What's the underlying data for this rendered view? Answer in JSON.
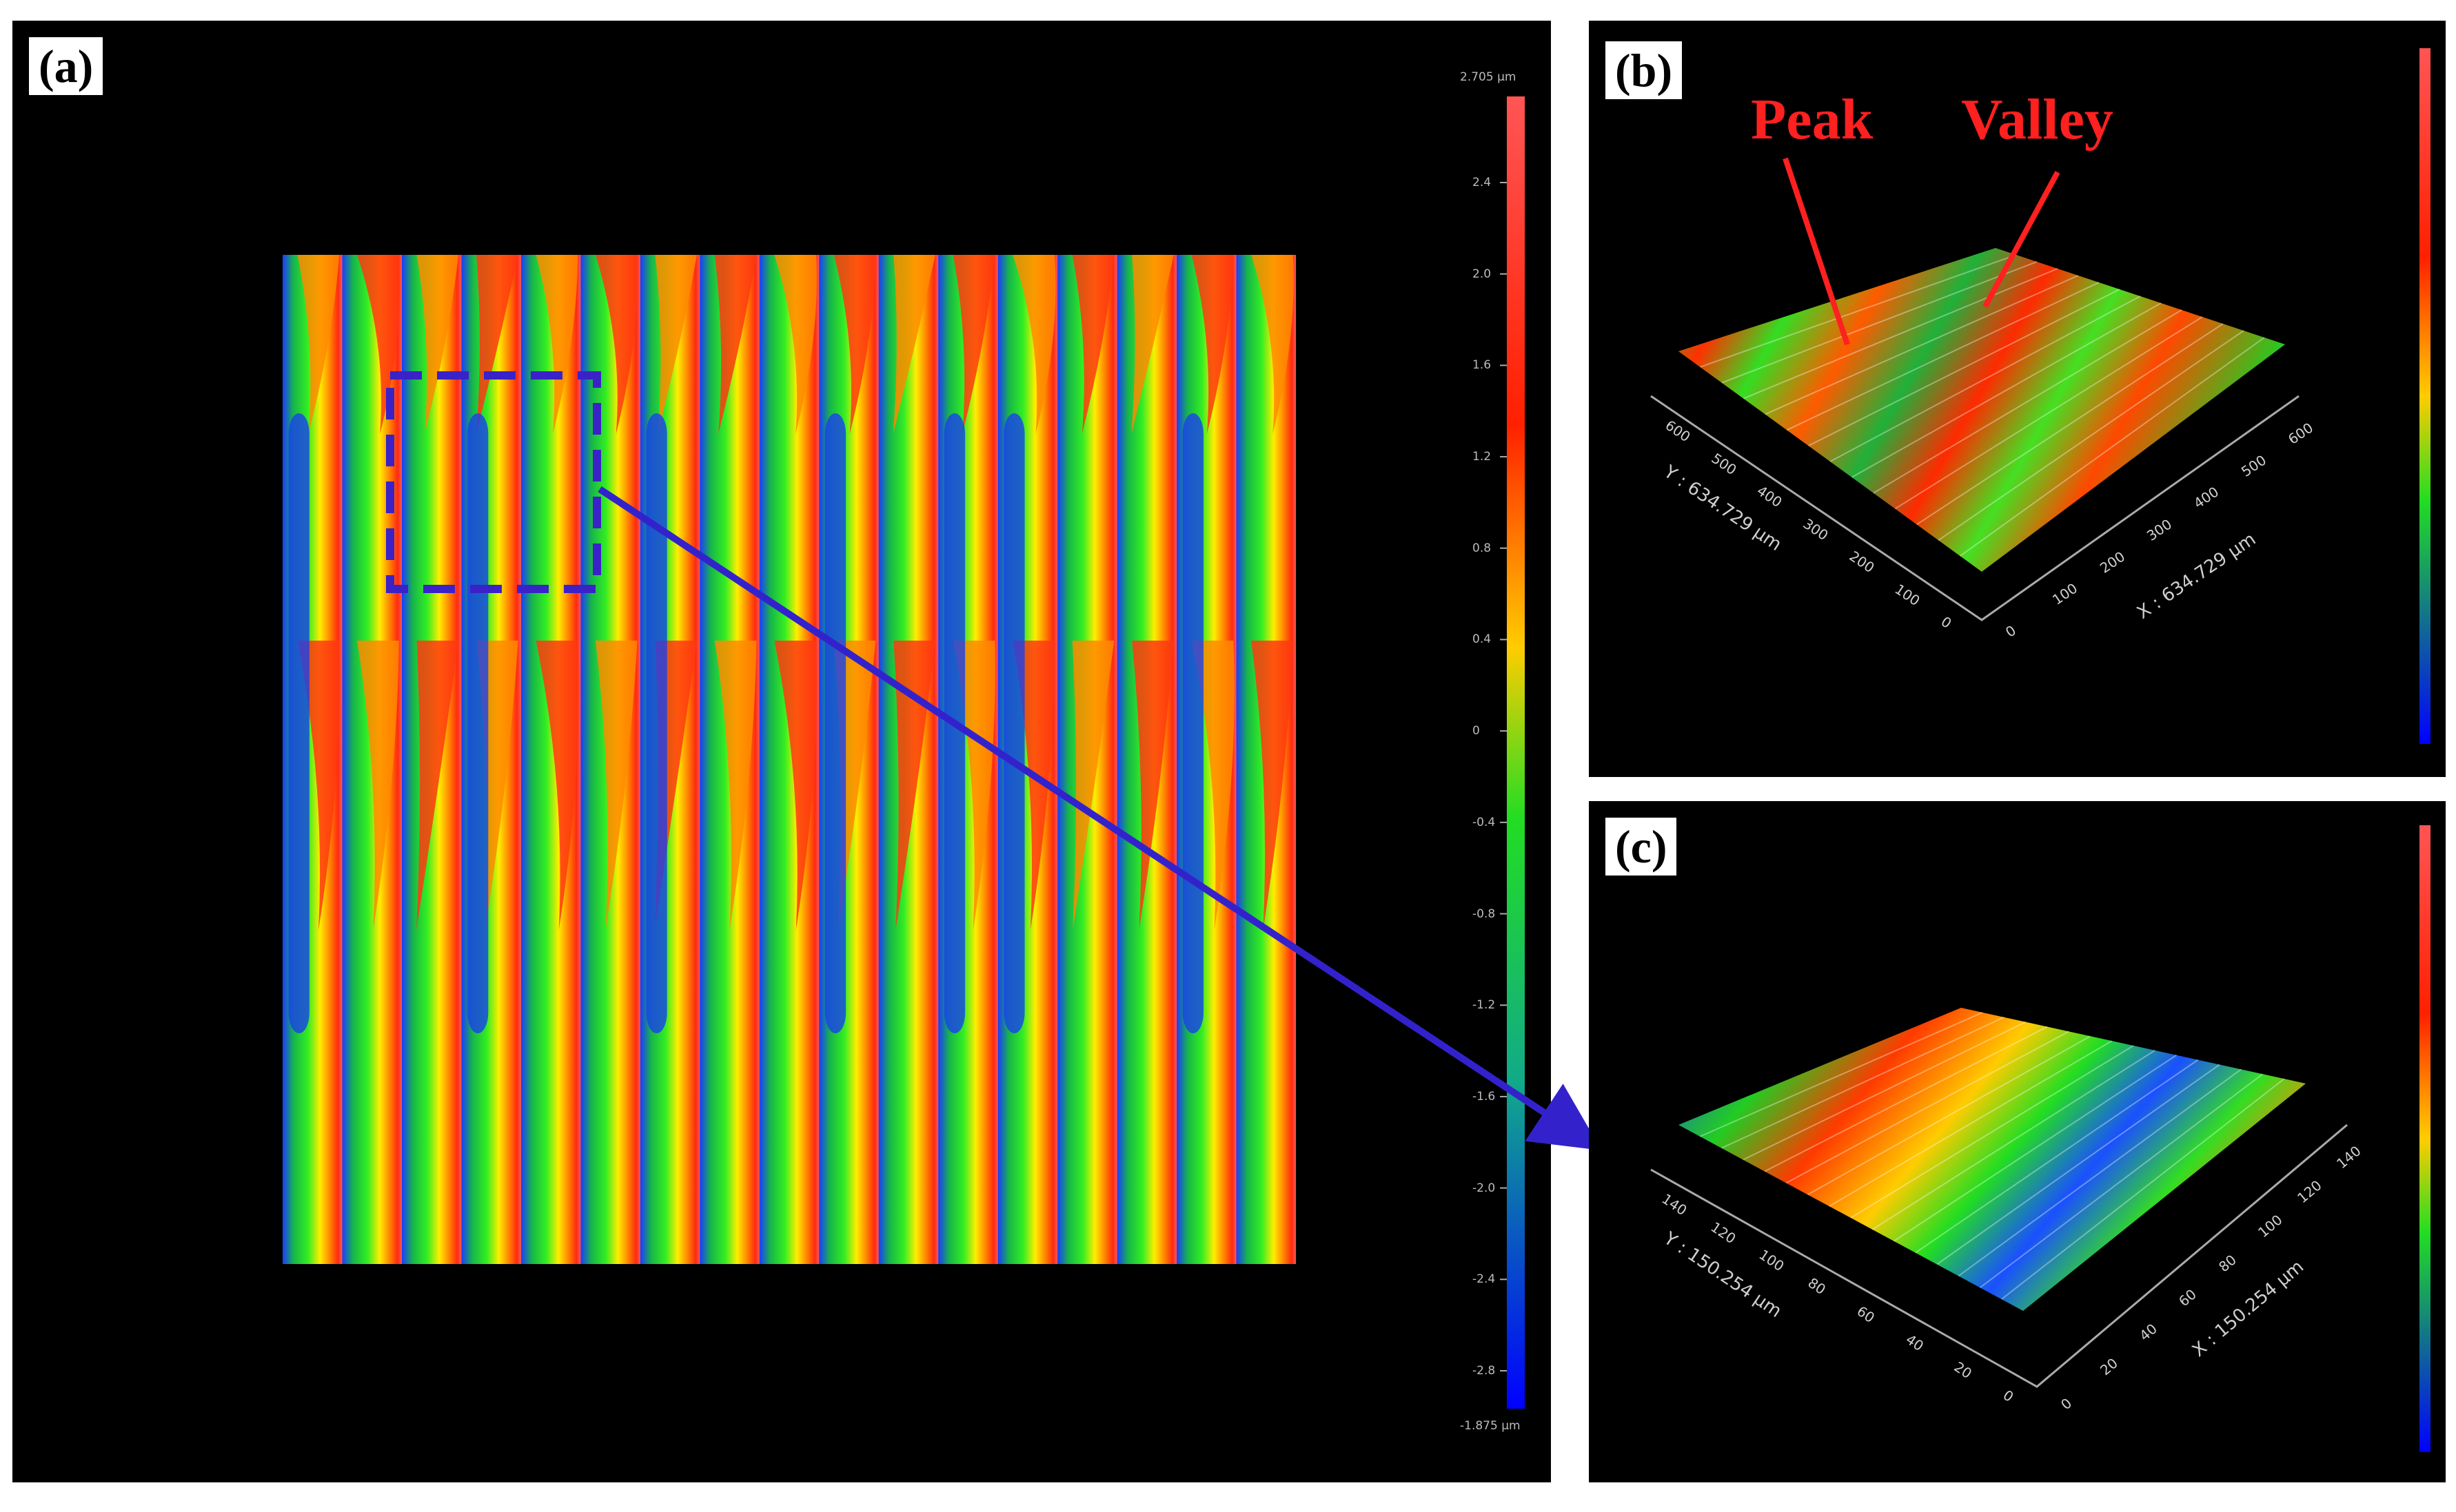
{
  "panels": {
    "a": {
      "label": "(a)",
      "scale_top": "2.705 µm",
      "scale_bottom": "-1.875 µm",
      "scale_ticks": [
        "2.4",
        "2.0",
        "1.6",
        "1.2",
        "0.8",
        "0.4",
        "0",
        "-0.4",
        "-0.8",
        "-1.2",
        "-1.6",
        "-2.0",
        "-2.4",
        "-2.8"
      ]
    },
    "b": {
      "label": "(b)",
      "peak_label": "Peak",
      "valley_label": "Valley",
      "y_axis_label": "Y : 634.729 µm",
      "x_axis_label": "X : 634.729 µm",
      "y_ticks": [
        "0",
        "100",
        "200",
        "300",
        "400",
        "500",
        "600"
      ],
      "x_ticks": [
        "0",
        "100",
        "200",
        "300",
        "400",
        "500",
        "600"
      ]
    },
    "c": {
      "label": "(c)",
      "y_axis_label": "Y : 150.254 µm",
      "x_axis_label": "X : 150.254 µm",
      "y_ticks": [
        "0",
        "20",
        "40",
        "60",
        "80",
        "100",
        "120",
        "140"
      ],
      "x_ticks": [
        "0",
        "20",
        "40",
        "60",
        "80",
        "100",
        "120",
        "140"
      ]
    }
  },
  "colors": {
    "background": "#000000",
    "high": "#ff4040",
    "mid_high": "#ff9900",
    "mid": "#ffee00",
    "mid_low": "#22cc22",
    "low": "#1a40ff",
    "arrow_and_box": "#3322cc",
    "annotation": "#ff2020"
  }
}
